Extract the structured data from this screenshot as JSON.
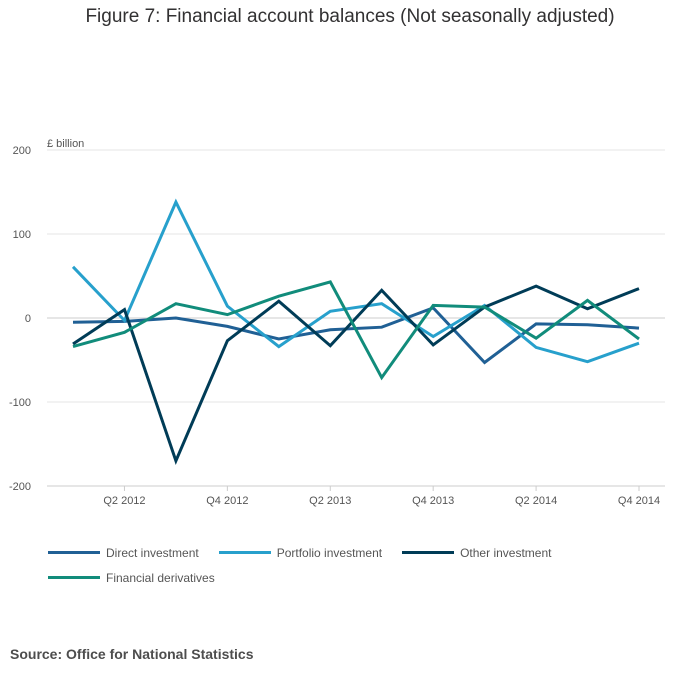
{
  "title": "Figure 7: Financial account balances (Not seasonally adjusted)",
  "source": "Source: Office for National Statistics",
  "chart_data": {
    "type": "line",
    "title": "Figure 7: Financial account balances (Not seasonally adjusted)",
    "ylabel": "£ billion",
    "xlabel": "",
    "ylim": [
      -200,
      200
    ],
    "yticks": [
      200,
      100,
      0,
      -100,
      -200
    ],
    "ytick_labels": [
      "200",
      "100",
      "0",
      "-100",
      "-200"
    ],
    "x": [
      "Q1 2012",
      "Q2 2012",
      "Q3 2012",
      "Q4 2012",
      "Q1 2013",
      "Q2 2013",
      "Q3 2013",
      "Q4 2013",
      "Q1 2014",
      "Q2 2014",
      "Q3 2014",
      "Q4 2014"
    ],
    "xtick_labels": [
      "Q2 2012",
      "Q4 2012",
      "Q2 2013",
      "Q4 2013",
      "Q2 2014",
      "Q4 2014"
    ],
    "grid": true,
    "legend_position": "bottom",
    "series": [
      {
        "name": "Direct investment",
        "color": "#206095",
        "values": [
          -5,
          -4,
          0,
          -10,
          -25,
          -14,
          -11,
          12,
          -53,
          -7,
          -8,
          -12
        ]
      },
      {
        "name": "Portfolio investment",
        "color": "#27a0cc",
        "values": [
          61,
          -3,
          138,
          14,
          -34,
          8,
          17,
          -22,
          15,
          -35,
          -52,
          -30
        ]
      },
      {
        "name": "Other investment",
        "color": "#003c57",
        "values": [
          -31,
          10,
          -170,
          -27,
          20,
          -33,
          33,
          -32,
          13,
          38,
          11,
          35
        ]
      },
      {
        "name": "Financial derivatives",
        "color": "#118c7b",
        "values": [
          -34,
          -17,
          17,
          4,
          26,
          43,
          -71,
          15,
          13,
          -24,
          21,
          -25
        ]
      }
    ]
  }
}
